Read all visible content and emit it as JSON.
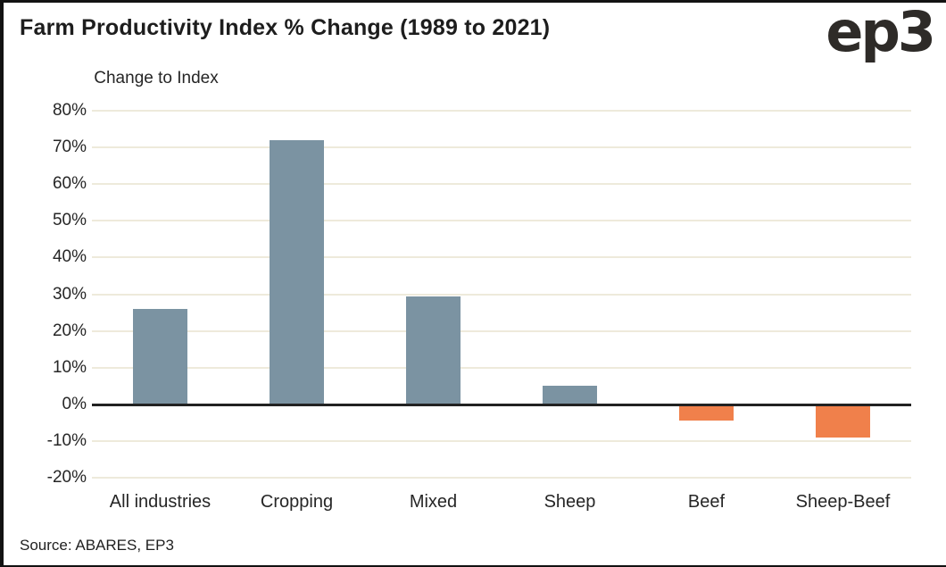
{
  "header": {
    "title": "Farm Productivity Index % Change (1989 to 2021)",
    "logo_text": "ep3"
  },
  "footer": {
    "source": "Source: ABARES, EP3"
  },
  "chart_data": {
    "type": "bar",
    "title": "Farm Productivity Index % Change (1989 to 2021)",
    "ylabel": "Change to Index",
    "xlabel": "",
    "categories": [
      "All industries",
      "Cropping",
      "Mixed",
      "Sheep",
      "Beef",
      "Sheep-Beef"
    ],
    "values": [
      26,
      72,
      29.5,
      5,
      -4.5,
      -9
    ],
    "ylim": [
      -20,
      80
    ],
    "ytick_step": 10,
    "yticks": [
      {
        "value": 80,
        "label": "80%"
      },
      {
        "value": 70,
        "label": "70%"
      },
      {
        "value": 60,
        "label": "60%"
      },
      {
        "value": 50,
        "label": "50%"
      },
      {
        "value": 40,
        "label": "40%"
      },
      {
        "value": 30,
        "label": "30%"
      },
      {
        "value": 20,
        "label": "20%"
      },
      {
        "value": 10,
        "label": "10%"
      },
      {
        "value": 0,
        "label": "0%"
      },
      {
        "value": -10,
        "label": "-10%"
      },
      {
        "value": -20,
        "label": "-20%"
      }
    ],
    "grid": true,
    "legend": false,
    "colors": {
      "positive_bar": "#7b93a2",
      "negative_bar": "#f0804b",
      "gridline": "#eeeadb",
      "axis_line": "#222222",
      "text": "#262626"
    },
    "source": "Source: ABARES, EP3"
  }
}
